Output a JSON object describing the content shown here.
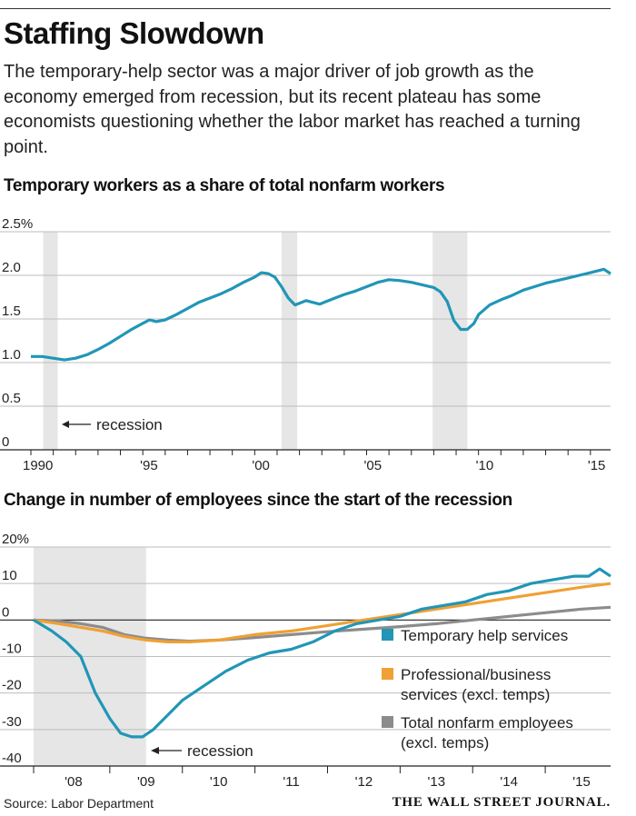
{
  "title": "Staffing Slowdown",
  "subtitle": "The temporary-help sector was a major driver of job growth as the economy emerged from recession, but its recent plateau has some economists questioning whether the labor market has reached a turning point.",
  "source": "Source: Labor Department",
  "publisher": "THE WALL STREET JOURNAL.",
  "colors": {
    "temp": "#2196b6",
    "prof": "#f0a034",
    "total": "#8c8c8c",
    "recession": "#e6e6e6"
  },
  "chart_data": [
    {
      "type": "line",
      "title": "Temporary workers as a share of total nonfarm workers",
      "ylim": [
        0,
        2.5
      ],
      "xlim": [
        1990,
        2015.9
      ],
      "y_ticks": [
        {
          "value": 2.5,
          "label": "2.5%"
        },
        {
          "value": 2.0,
          "label": "2.0"
        },
        {
          "value": 1.5,
          "label": "1.5"
        },
        {
          "value": 1.0,
          "label": "1.0"
        },
        {
          "value": 0.5,
          "label": "0.5"
        },
        {
          "value": 0,
          "label": "0"
        }
      ],
      "x_ticks": [
        {
          "value": 1990,
          "label": "1990"
        },
        {
          "value": 1995,
          "label": "'95"
        },
        {
          "value": 2000,
          "label": "'00"
        },
        {
          "value": 2005,
          "label": "'05"
        },
        {
          "value": 2010,
          "label": "'10"
        },
        {
          "value": 2015,
          "label": "'15"
        }
      ],
      "recessions": [
        [
          1990.55,
          1991.2
        ],
        [
          2001.2,
          2001.9
        ],
        [
          2007.95,
          2009.5
        ]
      ],
      "annotation": "recession",
      "grid": true,
      "series": [
        {
          "name": "",
          "x": [
            1990.0,
            1990.5,
            1991.0,
            1991.5,
            1992.0,
            1992.5,
            1993.0,
            1993.5,
            1994.0,
            1994.5,
            1995.0,
            1995.3,
            1995.6,
            1996.0,
            1996.5,
            1997.0,
            1997.5,
            1998.0,
            1998.5,
            1999.0,
            1999.5,
            2000.0,
            2000.3,
            2000.6,
            2000.9,
            2001.2,
            2001.5,
            2001.8,
            2002.0,
            2002.3,
            2002.6,
            2002.9,
            2003.2,
            2003.5,
            2003.8,
            2004.0,
            2004.5,
            2005.0,
            2005.5,
            2006.0,
            2006.5,
            2007.0,
            2007.5,
            2008.0,
            2008.3,
            2008.6,
            2008.9,
            2009.2,
            2009.5,
            2009.8,
            2010.0,
            2010.5,
            2011.0,
            2011.5,
            2012.0,
            2012.5,
            2013.0,
            2013.5,
            2014.0,
            2014.5,
            2015.0,
            2015.3,
            2015.6,
            2015.9
          ],
          "values": [
            1.07,
            1.07,
            1.05,
            1.03,
            1.05,
            1.09,
            1.15,
            1.22,
            1.3,
            1.38,
            1.45,
            1.49,
            1.47,
            1.49,
            1.55,
            1.62,
            1.69,
            1.74,
            1.79,
            1.85,
            1.92,
            1.98,
            2.03,
            2.02,
            1.98,
            1.87,
            1.74,
            1.66,
            1.68,
            1.71,
            1.69,
            1.67,
            1.7,
            1.73,
            1.76,
            1.78,
            1.82,
            1.87,
            1.92,
            1.95,
            1.94,
            1.92,
            1.89,
            1.86,
            1.81,
            1.7,
            1.48,
            1.38,
            1.38,
            1.45,
            1.55,
            1.66,
            1.72,
            1.77,
            1.83,
            1.87,
            1.91,
            1.94,
            1.97,
            2.0,
            2.03,
            2.05,
            2.07,
            2.02
          ]
        }
      ]
    },
    {
      "type": "line",
      "title": "Change in number of employees since the start of the recession",
      "ylim": [
        -40,
        20
      ],
      "xlim": [
        2007.95,
        2015.9
      ],
      "y_ticks": [
        {
          "value": 20,
          "label": "20%"
        },
        {
          "value": 10,
          "label": "10"
        },
        {
          "value": 0,
          "label": "0"
        },
        {
          "value": -10,
          "label": "-10"
        },
        {
          "value": -20,
          "label": "-20"
        },
        {
          "value": -30,
          "label": "-30"
        },
        {
          "value": -40,
          "label": "-40"
        }
      ],
      "x_ticks": [
        {
          "value": 2008.5,
          "label": "'08"
        },
        {
          "value": 2009.5,
          "label": "'09"
        },
        {
          "value": 2010.5,
          "label": "'10"
        },
        {
          "value": 2011.5,
          "label": "'11"
        },
        {
          "value": 2012.5,
          "label": "'12"
        },
        {
          "value": 2013.5,
          "label": "'13"
        },
        {
          "value": 2014.5,
          "label": "'14"
        },
        {
          "value": 2015.5,
          "label": "'15"
        }
      ],
      "year_boundaries": [
        2009,
        2010,
        2011,
        2012,
        2013,
        2014,
        2015
      ],
      "recessions": [
        [
          2007.95,
          2009.5
        ]
      ],
      "annotation": "recession",
      "grid": true,
      "legend_position": "right",
      "series": [
        {
          "name": "Temporary help services",
          "color_key": "temp",
          "x": [
            2007.95,
            2008.2,
            2008.4,
            2008.6,
            2008.8,
            2009.0,
            2009.15,
            2009.3,
            2009.45,
            2009.6,
            2009.8,
            2010.0,
            2010.3,
            2010.6,
            2010.9,
            2011.2,
            2011.5,
            2011.8,
            2012.1,
            2012.4,
            2012.7,
            2013.0,
            2013.3,
            2013.6,
            2013.9,
            2014.2,
            2014.5,
            2014.8,
            2015.1,
            2015.4,
            2015.6,
            2015.75,
            2015.9
          ],
          "values": [
            0,
            -3,
            -6,
            -10,
            -20,
            -27,
            -31,
            -32,
            -32,
            -30,
            -26,
            -22,
            -18,
            -14,
            -11,
            -9,
            -8,
            -6,
            -3,
            -1,
            0,
            1,
            3,
            4,
            5,
            7,
            8,
            10,
            11,
            12,
            12,
            14,
            12
          ]
        },
        {
          "name": "Professional/business services (excl. temps)",
          "color_key": "prof",
          "x": [
            2007.95,
            2008.3,
            2008.6,
            2008.9,
            2009.2,
            2009.5,
            2009.8,
            2010.1,
            2010.5,
            2011.0,
            2011.5,
            2012.0,
            2012.5,
            2013.0,
            2013.5,
            2014.0,
            2014.5,
            2015.0,
            2015.5,
            2015.9
          ],
          "values": [
            0,
            -1,
            -2,
            -3,
            -4.5,
            -5.5,
            -6,
            -6,
            -5.5,
            -4,
            -3,
            -1.5,
            0,
            1.5,
            3,
            4.5,
            6,
            7.5,
            9,
            10
          ]
        },
        {
          "name": "Total nonfarm employees (excl. temps)",
          "color_key": "total",
          "x": [
            2007.95,
            2008.3,
            2008.6,
            2008.9,
            2009.2,
            2009.5,
            2009.8,
            2010.1,
            2010.5,
            2011.0,
            2011.5,
            2012.0,
            2012.5,
            2013.0,
            2013.5,
            2014.0,
            2014.5,
            2015.0,
            2015.5,
            2015.9
          ],
          "values": [
            0,
            -0.3,
            -1,
            -2,
            -4,
            -5,
            -5.5,
            -5.8,
            -5.5,
            -4.8,
            -4,
            -3.2,
            -2.5,
            -1.8,
            -1,
            0,
            1,
            2,
            3,
            3.5
          ]
        }
      ]
    }
  ]
}
